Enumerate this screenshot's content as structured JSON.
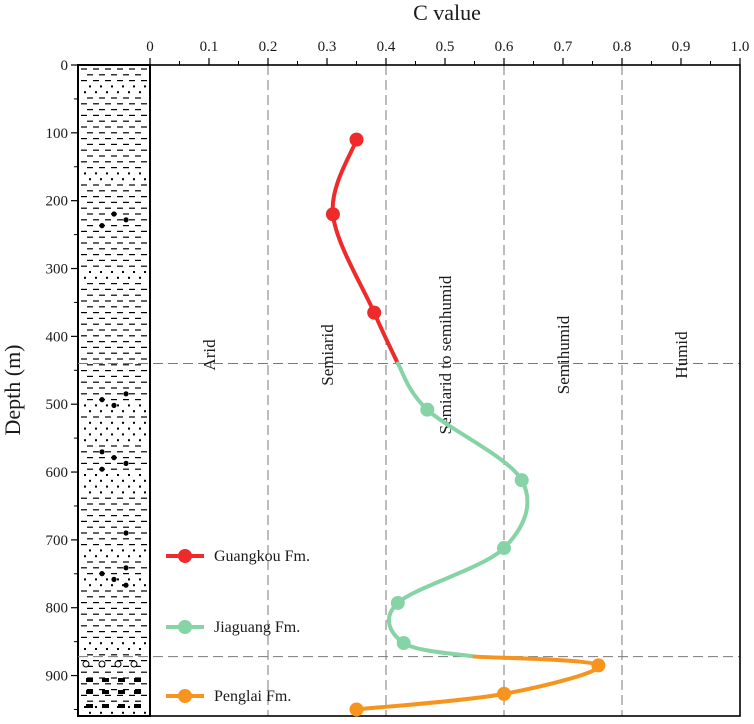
{
  "chart_data": {
    "type": "line",
    "xlabel": "C value",
    "ylabel": "Depth (m)",
    "xlim": [
      0,
      1.0
    ],
    "ylim": [
      0,
      960
    ],
    "x_axis_position": "top",
    "y_axis_inverted": true,
    "x_ticks": [
      "0",
      "0.1",
      "0.2",
      "0.3",
      "0.4",
      "0.5",
      "0.6",
      "0.7",
      "0.8",
      "0.9",
      "1.0"
    ],
    "y_ticks": [
      "0",
      "100",
      "200",
      "300",
      "400",
      "500",
      "600",
      "700",
      "800",
      "900"
    ],
    "grid": "dashed vertical lines at 0.2, 0.4, 0.6, 0.8",
    "zone_labels": [
      {
        "label": "Arid",
        "c": 0.1
      },
      {
        "label": "Semiarid",
        "c": 0.3
      },
      {
        "label": "Semiarid to semihumid",
        "c": 0.5
      },
      {
        "label": "Semihumid",
        "c": 0.7
      },
      {
        "label": "Humid",
        "c": 0.9
      }
    ],
    "boundary_depths": [
      440,
      872
    ],
    "series": [
      {
        "name": "Guangkou Fm.",
        "color": "#ee2a2a",
        "points": [
          [
            0.35,
            110
          ],
          [
            0.31,
            220
          ],
          [
            0.38,
            365
          ],
          [
            0.42,
            440
          ]
        ]
      },
      {
        "name": "Jiaguang Fm.",
        "color": "#86d3a6",
        "points": [
          [
            0.42,
            440
          ],
          [
            0.47,
            508
          ],
          [
            0.63,
            612
          ],
          [
            0.6,
            712
          ],
          [
            0.42,
            793
          ],
          [
            0.43,
            852
          ],
          [
            0.55,
            872
          ]
        ]
      },
      {
        "name": "Penglai Fm.",
        "color": "#f7941d",
        "points": [
          [
            0.55,
            872
          ],
          [
            0.76,
            885
          ],
          [
            0.6,
            927
          ],
          [
            0.35,
            950
          ]
        ]
      }
    ],
    "markers": [
      {
        "series": "Guangkou Fm.",
        "c": 0.35,
        "depth": 110
      },
      {
        "series": "Guangkou Fm.",
        "c": 0.31,
        "depth": 220
      },
      {
        "series": "Guangkou Fm.",
        "c": 0.38,
        "depth": 365
      },
      {
        "series": "Jiaguang Fm.",
        "c": 0.47,
        "depth": 508
      },
      {
        "series": "Jiaguang Fm.",
        "c": 0.63,
        "depth": 612
      },
      {
        "series": "Jiaguang Fm.",
        "c": 0.6,
        "depth": 712
      },
      {
        "series": "Jiaguang Fm.",
        "c": 0.42,
        "depth": 793
      },
      {
        "series": "Jiaguang Fm.",
        "c": 0.43,
        "depth": 852
      },
      {
        "series": "Penglai Fm.",
        "c": 0.76,
        "depth": 885
      },
      {
        "series": "Penglai Fm.",
        "c": 0.6,
        "depth": 927
      },
      {
        "series": "Penglai Fm.",
        "c": 0.35,
        "depth": 950
      }
    ],
    "legend_position": "bottom-left inside plot"
  }
}
